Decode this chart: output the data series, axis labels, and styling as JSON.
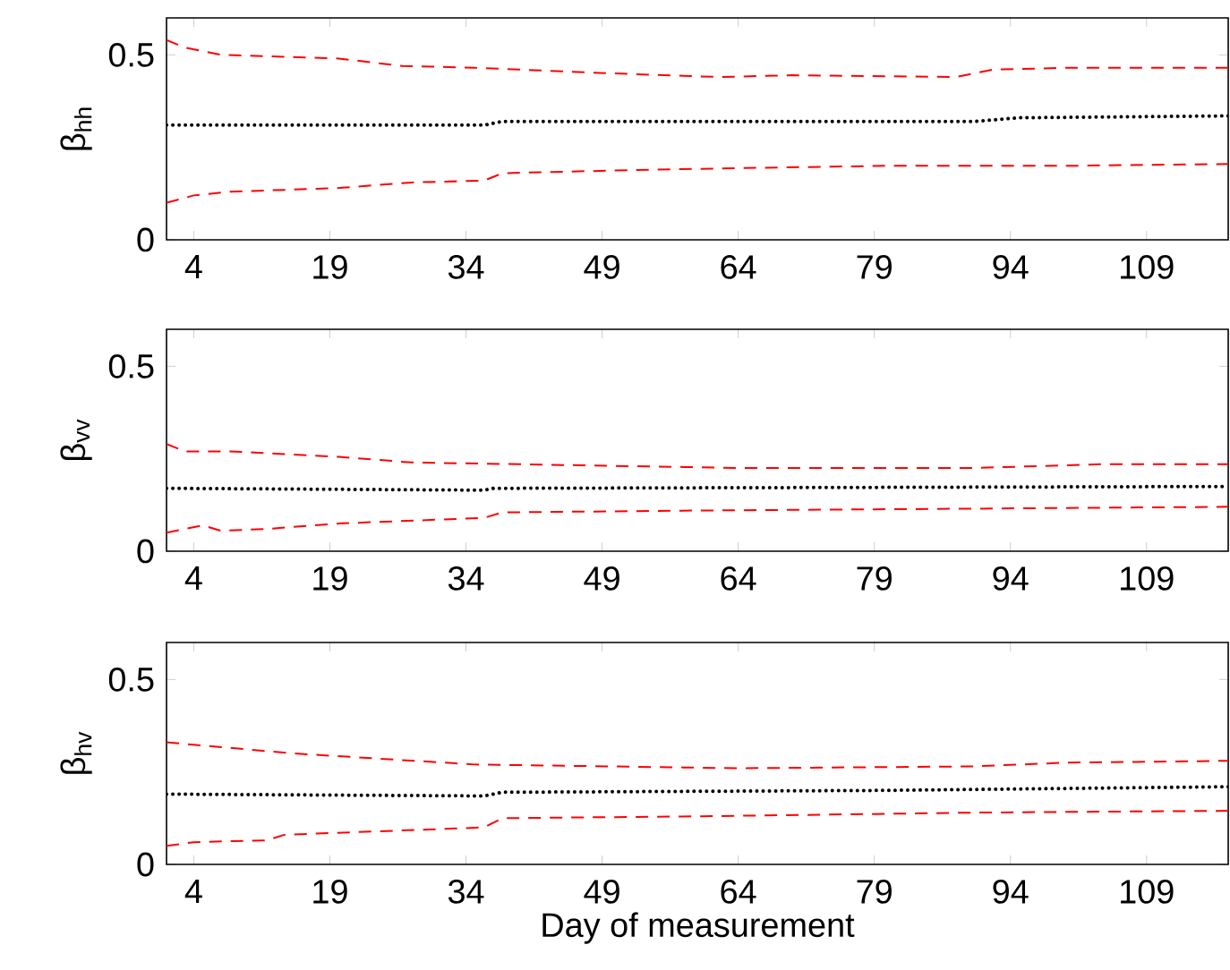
{
  "chart_data": [
    {
      "type": "line",
      "ylabel": "β$_{hh}$",
      "xlim": [
        1,
        118
      ],
      "ylim": [
        0,
        0.6
      ],
      "xticks": [
        4,
        19,
        34,
        49,
        64,
        79,
        94,
        109
      ],
      "yticks": [
        0,
        0.5
      ],
      "series": [
        {
          "color": "#ff0000",
          "line_style": "dashed",
          "x": [
            1,
            3,
            7,
            20,
            27,
            35,
            50,
            62,
            70,
            88,
            92,
            100,
            118
          ],
          "values": [
            0.54,
            0.52,
            0.5,
            0.49,
            0.47,
            0.465,
            0.45,
            0.44,
            0.445,
            0.44,
            0.46,
            0.465,
            0.465
          ]
        },
        {
          "color": "#000000",
          "line_style": "dotted",
          "x": [
            1,
            36,
            38,
            90,
            95,
            118
          ],
          "values": [
            0.31,
            0.31,
            0.32,
            0.32,
            0.33,
            0.335
          ]
        },
        {
          "color": "#ff0000",
          "line_style": "dashed",
          "x": [
            1,
            4,
            8,
            20,
            28,
            36,
            38,
            55,
            80,
            100,
            118
          ],
          "values": [
            0.1,
            0.12,
            0.13,
            0.14,
            0.155,
            0.16,
            0.18,
            0.19,
            0.2,
            0.2,
            0.205
          ]
        }
      ]
    },
    {
      "type": "line",
      "ylabel": "β$_{vv}$",
      "xlim": [
        1,
        118
      ],
      "ylim": [
        0,
        0.6
      ],
      "xticks": [
        4,
        19,
        34,
        49,
        64,
        79,
        94,
        109
      ],
      "yticks": [
        0,
        0.5
      ],
      "series": [
        {
          "color": "#ff0000",
          "line_style": "dashed",
          "x": [
            1,
            3,
            8,
            20,
            28,
            40,
            64,
            90,
            104,
            118
          ],
          "values": [
            0.29,
            0.27,
            0.27,
            0.255,
            0.24,
            0.235,
            0.225,
            0.225,
            0.235,
            0.235
          ]
        },
        {
          "color": "#000000",
          "line_style": "dotted",
          "x": [
            1,
            36,
            37,
            118
          ],
          "values": [
            0.17,
            0.165,
            0.17,
            0.175
          ]
        },
        {
          "color": "#ff0000",
          "line_style": "dashed",
          "x": [
            1,
            5,
            7,
            12,
            20,
            36,
            38,
            60,
            90,
            118
          ],
          "values": [
            0.05,
            0.07,
            0.055,
            0.06,
            0.075,
            0.09,
            0.105,
            0.11,
            0.115,
            0.12
          ]
        }
      ]
    },
    {
      "type": "line",
      "ylabel": "β$_{hv}$",
      "xlabel": "Day of measurement",
      "xlim": [
        1,
        118
      ],
      "ylim": [
        0,
        0.6
      ],
      "xticks": [
        4,
        19,
        34,
        49,
        64,
        79,
        94,
        109
      ],
      "yticks": [
        0,
        0.5
      ],
      "series": [
        {
          "color": "#ff0000",
          "line_style": "dashed",
          "x": [
            1,
            15,
            35,
            64,
            90,
            100,
            118
          ],
          "values": [
            0.33,
            0.3,
            0.27,
            0.26,
            0.265,
            0.275,
            0.28
          ]
        },
        {
          "color": "#000000",
          "line_style": "dotted",
          "x": [
            1,
            36,
            38,
            80,
            118
          ],
          "values": [
            0.19,
            0.185,
            0.195,
            0.2,
            0.21
          ]
        },
        {
          "color": "#ff0000",
          "line_style": "dashed",
          "x": [
            1,
            4,
            12,
            14,
            36,
            38,
            60,
            90,
            118
          ],
          "values": [
            0.05,
            0.06,
            0.065,
            0.08,
            0.1,
            0.125,
            0.13,
            0.14,
            0.145
          ]
        }
      ]
    }
  ]
}
